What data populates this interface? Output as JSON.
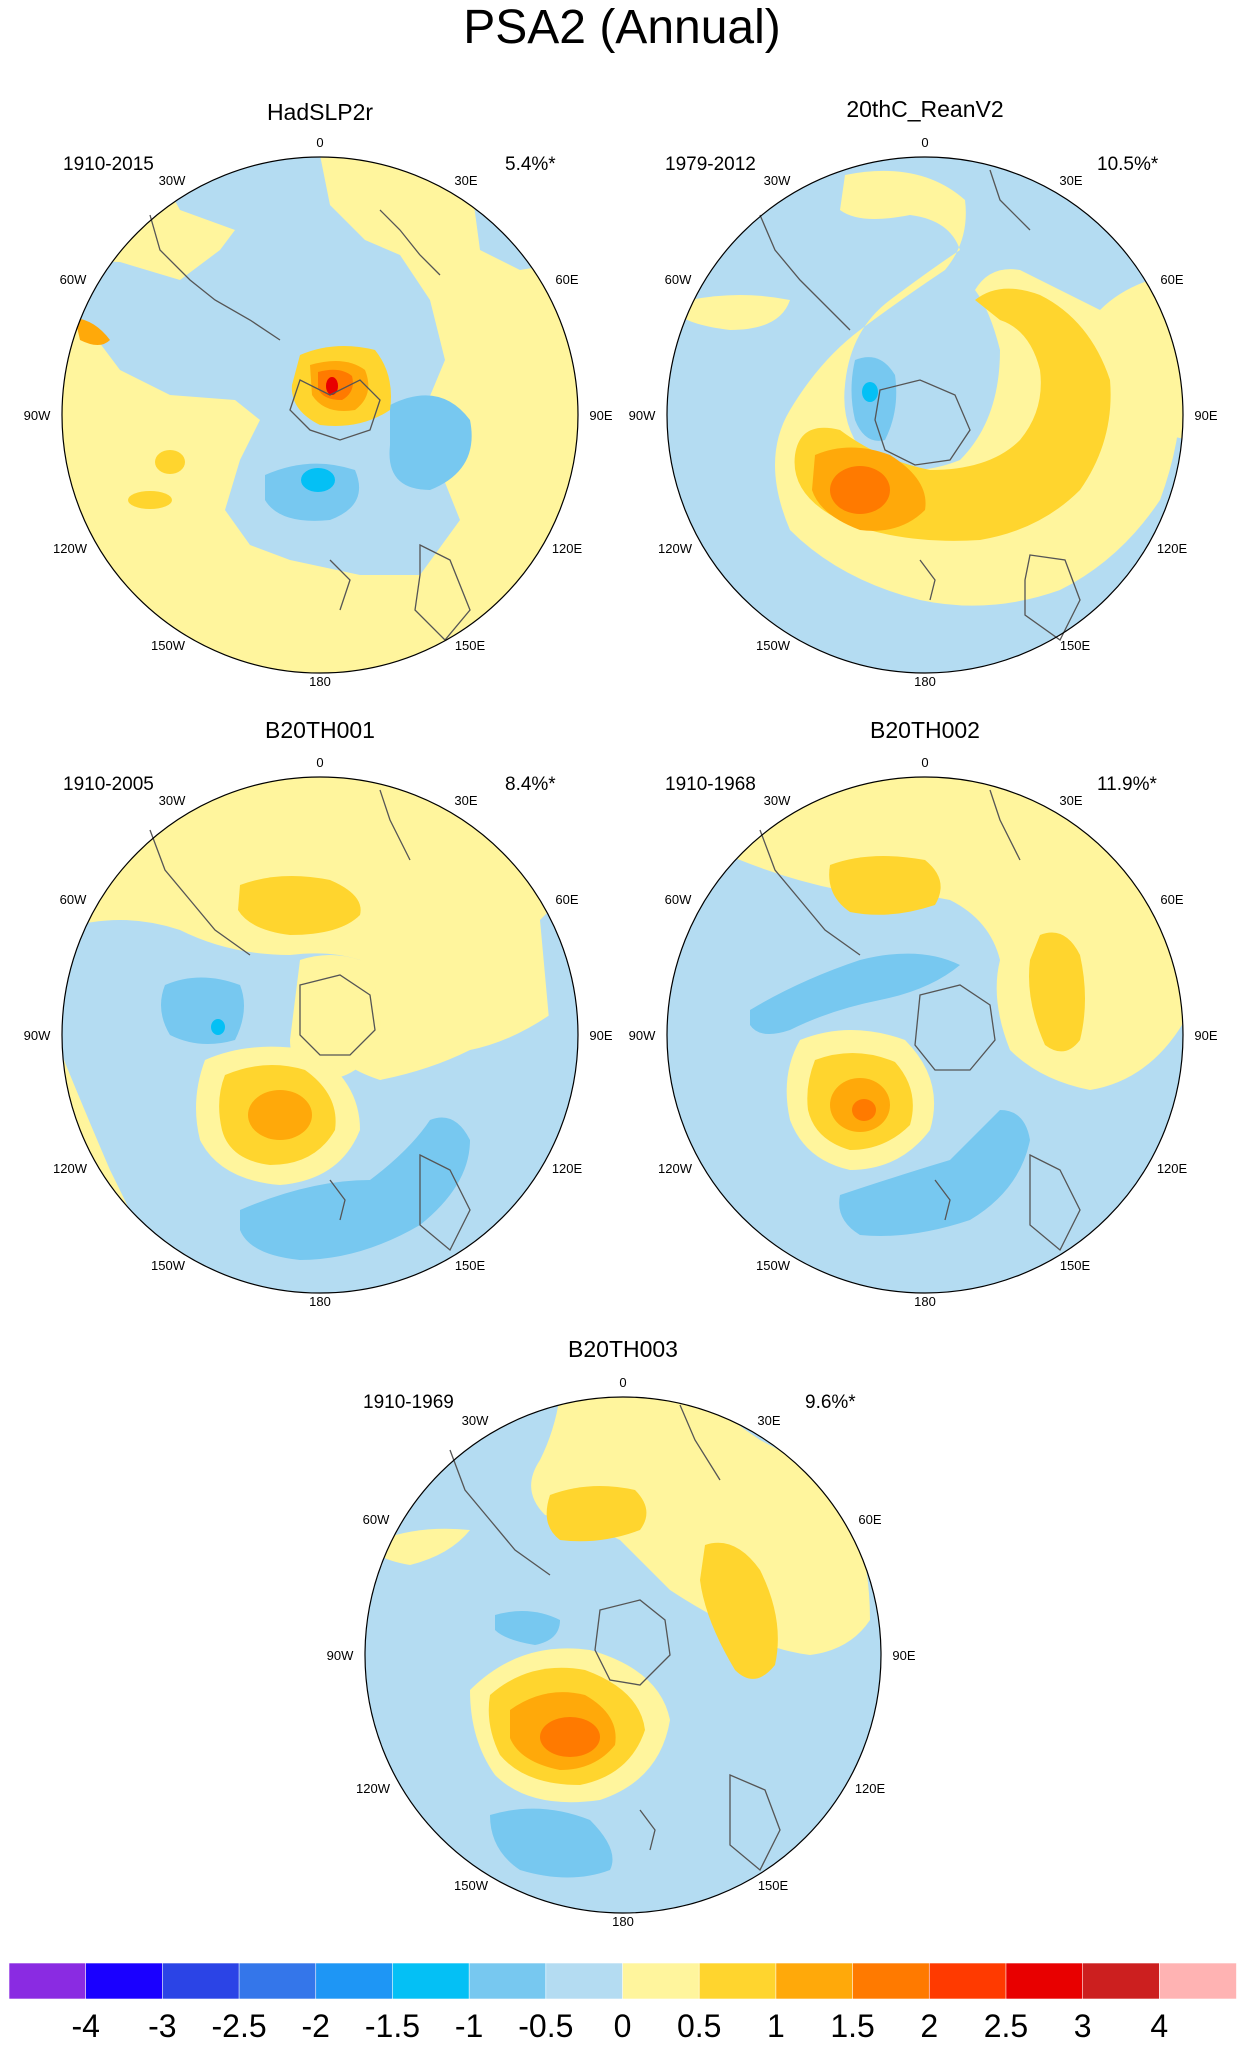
{
  "figure": {
    "title": "PSA2 (Annual)"
  },
  "panels": [
    {
      "name": "HadSLP2r",
      "period": "1910-2015",
      "variance": "5.4%*"
    },
    {
      "name": "20thC_ReanV2",
      "period": "1979-2012",
      "variance": "10.5%*"
    },
    {
      "name": "B20TH001",
      "period": "1910-2005",
      "variance": "8.4%*"
    },
    {
      "name": "B20TH002",
      "period": "1910-1968",
      "variance": "11.9%*"
    },
    {
      "name": "B20TH003",
      "period": "1910-1969",
      "variance": "9.6%*"
    }
  ],
  "longitude_labels": [
    "0",
    "30E",
    "60E",
    "90E",
    "120E",
    "150E",
    "180",
    "150W",
    "120W",
    "90W",
    "60W",
    "30W"
  ],
  "colorbar": {
    "labels": [
      "-4",
      "-3",
      "-2.5",
      "-2",
      "-1.5",
      "-1",
      "-0.5",
      "0",
      "0.5",
      "1",
      "1.5",
      "2",
      "2.5",
      "3",
      "4"
    ],
    "colors": [
      "#8a2be2",
      "#1a00ff",
      "#2b44e6",
      "#3476ea",
      "#1e96f5",
      "#04c0f5",
      "#77c8f0",
      "#b4dcf2",
      "#fff59d",
      "#ffd52e",
      "#ffa90a",
      "#ff7a00",
      "#ff3a00",
      "#e80000",
      "#cc1f1f",
      "#ffb3b3"
    ]
  },
  "map_colors": {
    "pos_0_5": "#fff59d",
    "pos_1": "#ffd52e",
    "pos_1_5": "#ffa90a",
    "pos_2": "#ff7a00",
    "pos_2_5": "#ff3a00",
    "pos_3": "#e80000",
    "neg_0_5": "#b4dcf2",
    "neg_1": "#77c8f0",
    "neg_1_5": "#04c0f5",
    "coast": "#555555"
  }
}
